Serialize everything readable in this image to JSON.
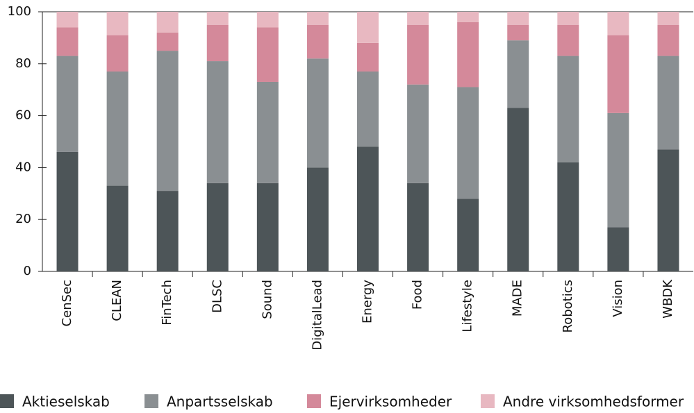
{
  "chart_data": {
    "type": "stacked_bar",
    "categories": [
      "CenSec",
      "CLEAN",
      "FinTech",
      "DLSC",
      "Sound",
      "DigitalLead",
      "Energy",
      "Food",
      "Lifestyle",
      "MADE",
      "Robotics",
      "Vision",
      "WBDK"
    ],
    "series": [
      {
        "name": "Aktieselskab",
        "color": "#4d5558",
        "values": [
          46,
          33,
          31,
          34,
          34,
          40,
          48,
          34,
          28,
          63,
          42,
          17,
          47
        ]
      },
      {
        "name": "Anpartsselskab",
        "color": "#8a8f92",
        "values": [
          37,
          44,
          54,
          47,
          39,
          42,
          29,
          38,
          43,
          26,
          41,
          44,
          36
        ]
      },
      {
        "name": "Ejervirksomheder",
        "color": "#d4899a",
        "values": [
          11,
          14,
          7,
          14,
          21,
          13,
          11,
          23,
          25,
          6,
          12,
          30,
          12
        ]
      },
      {
        "name": "Andre virksomhedsformer",
        "color": "#e8b8c1",
        "values": [
          6,
          9,
          8,
          5,
          6,
          5,
          12,
          5,
          4,
          5,
          5,
          9,
          5
        ]
      }
    ],
    "ylim": [
      0,
      100
    ],
    "yticks": [
      0,
      20,
      40,
      60,
      80,
      100
    ],
    "grid": false,
    "legend": "bottom"
  }
}
